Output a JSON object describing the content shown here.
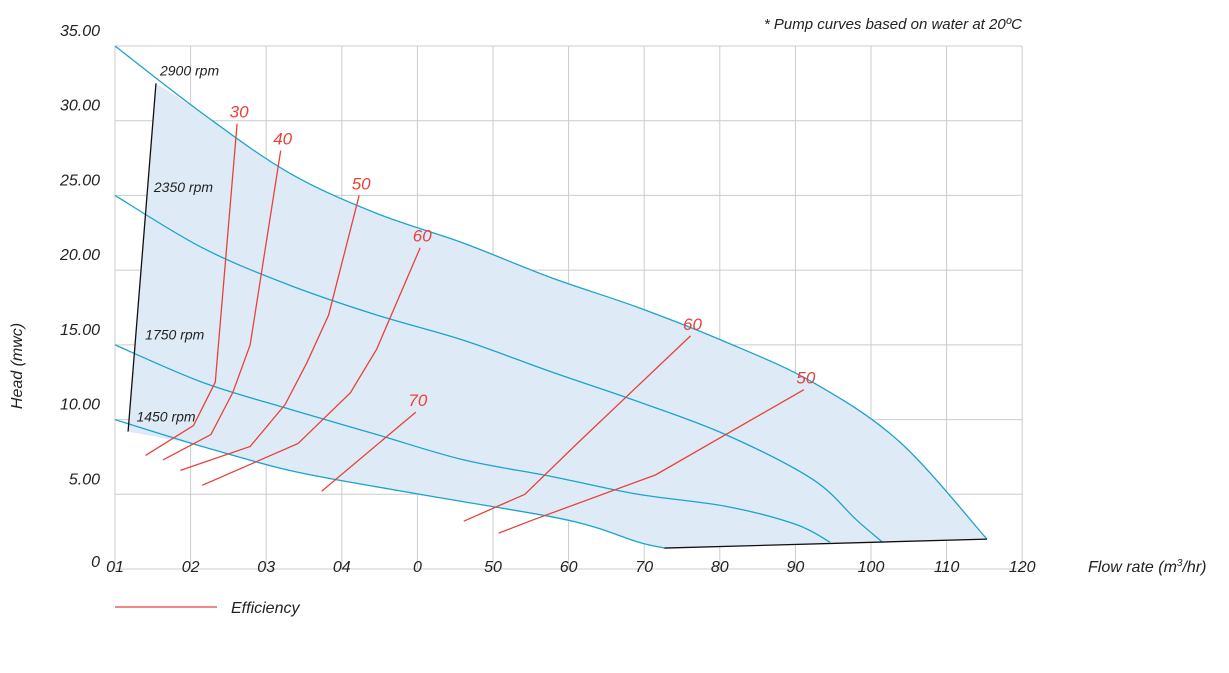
{
  "chart_data": {
    "type": "line",
    "note": "* Pump curves based on water at 20ºC",
    "xlabel_main": "Flow rate (m",
    "xlabel_sup": "3",
    "xlabel_tail": "/hr)",
    "ylabel": "Head (mwc)",
    "x_tick_labels": [
      "01",
      "02",
      "03",
      "04",
      "0",
      "50",
      "60",
      "70",
      "80",
      "90",
      "100",
      "110",
      "120"
    ],
    "y_tick_labels": [
      "0",
      "5.00",
      "10.00",
      "15.00",
      "20.00",
      "25.00",
      "30.00",
      "35.00"
    ],
    "ylim": [
      0,
      35
    ],
    "legend": {
      "label": "Efficiency",
      "position": "bottom-left"
    },
    "colors": {
      "speed_curve": "#1aa3cc",
      "efficiency": "#e8413a",
      "boundary": "#111111",
      "fill": "#deebf7",
      "grid": "#cccccc"
    },
    "speed_curves": [
      {
        "name": "2900 rpm",
        "points": [
          [
            0,
            35
          ],
          [
            10,
            30.5
          ],
          [
            20,
            26.5
          ],
          [
            30,
            23.8
          ],
          [
            40,
            21.8
          ],
          [
            50,
            19.5
          ],
          [
            60,
            17.5
          ],
          [
            70,
            15.2
          ],
          [
            80,
            12.5
          ],
          [
            90,
            8.5
          ],
          [
            100,
            2
          ]
        ]
      },
      {
        "name": "2350 rpm",
        "points": [
          [
            0,
            25
          ],
          [
            10,
            21.5
          ],
          [
            20,
            19
          ],
          [
            30,
            17
          ],
          [
            40,
            15.3
          ],
          [
            50,
            13.2
          ],
          [
            60,
            11.2
          ],
          [
            70,
            9
          ],
          [
            80,
            6
          ],
          [
            85,
            3.3
          ],
          [
            88,
            1.8
          ]
        ]
      },
      {
        "name": "1750 rpm",
        "points": [
          [
            0,
            15
          ],
          [
            10,
            12.5
          ],
          [
            20,
            10.7
          ],
          [
            30,
            9
          ],
          [
            40,
            7.3
          ],
          [
            50,
            6.2
          ],
          [
            60,
            5
          ],
          [
            70,
            4.2
          ],
          [
            78,
            3
          ],
          [
            82,
            1.8
          ]
        ]
      },
      {
        "name": "1450 rpm",
        "points": [
          [
            0,
            10
          ],
          [
            10,
            8.2
          ],
          [
            20,
            6.6
          ],
          [
            30,
            5.5
          ],
          [
            40,
            4.5
          ],
          [
            50,
            3.5
          ],
          [
            55,
            2.8
          ],
          [
            60,
            1.8
          ],
          [
            63,
            1.4
          ]
        ]
      }
    ],
    "boundary": [
      [
        4.7,
        32.5
      ],
      [
        1.5,
        9.2
      ]
    ],
    "bottom_boundary": [
      [
        63,
        1.4
      ],
      [
        100,
        2
      ]
    ],
    "efficiency_lines": [
      {
        "label": "30",
        "points": [
          [
            3.5,
            7.6
          ],
          [
            9,
            9.6
          ],
          [
            11.5,
            12.5
          ],
          [
            14,
            29.8
          ]
        ]
      },
      {
        "label": "40",
        "points": [
          [
            5.5,
            7.3
          ],
          [
            11,
            9
          ],
          [
            13.5,
            11.8
          ],
          [
            15.5,
            15
          ],
          [
            19,
            28
          ]
        ]
      },
      {
        "label": "50",
        "points": [
          [
            7.5,
            6.6
          ],
          [
            15.5,
            8.2
          ],
          [
            19.5,
            11
          ],
          [
            22,
            13.8
          ],
          [
            24.5,
            17
          ],
          [
            28,
            25
          ]
        ]
      },
      {
        "label": "60",
        "points": [
          [
            10,
            5.6
          ],
          [
            21,
            8.4
          ],
          [
            27,
            11.8
          ],
          [
            30,
            14.7
          ],
          [
            35,
            21.5
          ]
        ]
      },
      {
        "label": "70",
        "points": [
          [
            23.7,
            5.2
          ],
          [
            34.5,
            10.5
          ]
        ]
      },
      {
        "label": "60",
        "points": [
          [
            40,
            3.2
          ],
          [
            47,
            5
          ],
          [
            53,
            8.4
          ],
          [
            66,
            15.6
          ]
        ]
      },
      {
        "label": "50",
        "points": [
          [
            44,
            2.4
          ],
          [
            48,
            3.3
          ],
          [
            62,
            6.3
          ],
          [
            79,
            12
          ]
        ]
      }
    ]
  }
}
